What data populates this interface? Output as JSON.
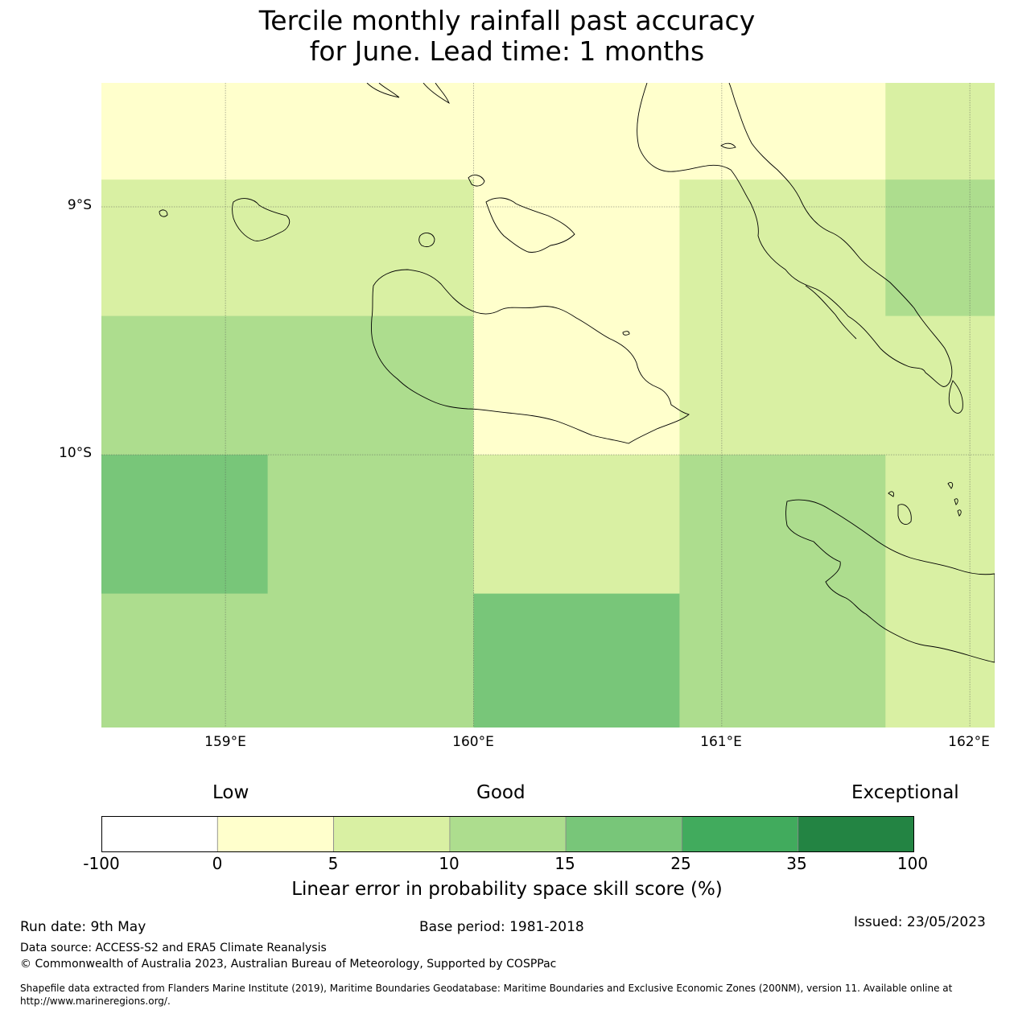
{
  "title": {
    "line1": "Tercile monthly rainfall past accuracy",
    "line2": "for June. Lead time: 1 months"
  },
  "map": {
    "lat_labels": [
      "9°S",
      "10°S"
    ],
    "lon_labels": [
      "159°E",
      "160°E",
      "161°E",
      "162°E"
    ],
    "extent": {
      "lon": [
        158.5,
        162.1
      ],
      "lat": [
        -11.1,
        -8.5
      ]
    },
    "grid": true,
    "cells": [
      {
        "lon": [
          158.5,
          161.66
        ],
        "lat": [
          -8.89,
          -8.5
        ],
        "value": 2.5
      },
      {
        "lon": [
          161.66,
          162.1
        ],
        "lat": [
          -8.89,
          -8.5
        ],
        "value": 7.5
      },
      {
        "lon": [
          158.5,
          160.0
        ],
        "lat": [
          -9.44,
          -8.89
        ],
        "value": 7.5
      },
      {
        "lon": [
          160.0,
          160.83
        ],
        "lat": [
          -9.44,
          -8.89
        ],
        "value": 2.5
      },
      {
        "lon": [
          160.83,
          161.66
        ],
        "lat": [
          -9.44,
          -8.89
        ],
        "value": 7.5
      },
      {
        "lon": [
          161.66,
          162.1
        ],
        "lat": [
          -9.44,
          -8.89
        ],
        "value": 12.5
      },
      {
        "lon": [
          158.5,
          160.0
        ],
        "lat": [
          -10.0,
          -9.44
        ],
        "value": 12.5
      },
      {
        "lon": [
          160.0,
          160.83
        ],
        "lat": [
          -10.0,
          -9.44
        ],
        "value": 2.5
      },
      {
        "lon": [
          160.83,
          162.1
        ],
        "lat": [
          -10.0,
          -9.44
        ],
        "value": 7.5
      },
      {
        "lon": [
          158.5,
          159.17
        ],
        "lat": [
          -10.56,
          -10.0
        ],
        "value": 20
      },
      {
        "lon": [
          159.17,
          160.0
        ],
        "lat": [
          -10.56,
          -10.0
        ],
        "value": 12.5
      },
      {
        "lon": [
          160.0,
          160.83
        ],
        "lat": [
          -10.56,
          -10.0
        ],
        "value": 7.5
      },
      {
        "lon": [
          160.83,
          161.66
        ],
        "lat": [
          -10.56,
          -10.0
        ],
        "value": 12.5
      },
      {
        "lon": [
          161.66,
          162.1
        ],
        "lat": [
          -10.56,
          -10.0
        ],
        "value": 7.5
      },
      {
        "lon": [
          158.5,
          160.0
        ],
        "lat": [
          -11.1,
          -10.56
        ],
        "value": 12.5
      },
      {
        "lon": [
          160.0,
          160.83
        ],
        "lat": [
          -11.1,
          -10.56
        ],
        "value": 20
      },
      {
        "lon": [
          160.83,
          161.66
        ],
        "lat": [
          -11.1,
          -10.56
        ],
        "value": 12.5
      },
      {
        "lon": [
          161.66,
          162.1
        ],
        "lat": [
          -11.1,
          -10.56
        ],
        "value": 7.5
      }
    ]
  },
  "colorbar": {
    "category_labels": {
      "low": "Low",
      "good": "Good",
      "exceptional": "Exceptional"
    },
    "ticks": [
      "-100",
      "0",
      "5",
      "10",
      "15",
      "25",
      "35",
      "100"
    ],
    "bins": [
      {
        "from": -100,
        "to": 0,
        "color": "#ffffff"
      },
      {
        "from": 0,
        "to": 5,
        "color": "#ffffcc"
      },
      {
        "from": 5,
        "to": 10,
        "color": "#d9f0a3"
      },
      {
        "from": 10,
        "to": 15,
        "color": "#addd8e"
      },
      {
        "from": 15,
        "to": 25,
        "color": "#78c679"
      },
      {
        "from": 25,
        "to": 35,
        "color": "#41ab5d"
      },
      {
        "from": 35,
        "to": 100,
        "color": "#238443"
      }
    ],
    "title": "Linear error in probability space skill score (%)"
  },
  "footer": {
    "run_date": "Run date: 9th May",
    "base_period": "Base period: 1981-2018",
    "issued": "Issued: 23/05/2023",
    "data_source": "Data source: ACCESS-S2 and ERA5 Climate Reanalysis",
    "copyright": "© Commonwealth of Australia 2023, Australian Bureau of Meteorology, Supported by COSPPac",
    "shapefile": "Shapefile data extracted from Flanders Marine Institute (2019), Maritime Boundaries Geodatabase: Maritime Boundaries and Exclusive Economic Zones (200NM), version 11. Available online at http://www.marineregions.org/."
  }
}
